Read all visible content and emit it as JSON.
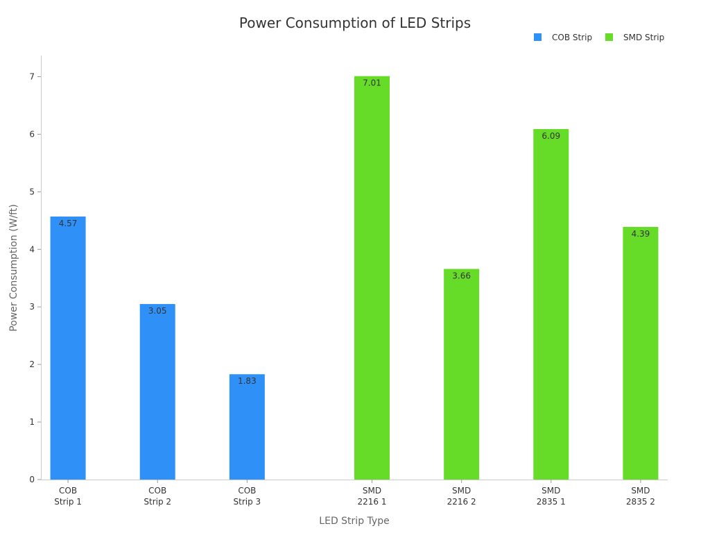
{
  "chart_data": {
    "type": "bar",
    "title": "Power Consumption of LED Strips",
    "xlabel": "LED Strip Type",
    "ylabel": "Power Consumption (W/ft)",
    "ylim": [
      0,
      7.35
    ],
    "yticks": [
      0,
      1,
      2,
      3,
      4,
      5,
      6,
      7
    ],
    "categories": [
      [
        "COB",
        "Strip 1"
      ],
      [
        "COB",
        "Strip 2"
      ],
      [
        "COB",
        "Strip 3"
      ],
      [
        "SMD",
        "2216 1"
      ],
      [
        "SMD",
        "2216 2"
      ],
      [
        "SMD",
        "2835 1"
      ],
      [
        "SMD",
        "2835 2"
      ]
    ],
    "series": [
      {
        "name": "COB Strip",
        "color": "#2f91f7",
        "values": [
          4.57,
          3.05,
          1.83,
          null,
          null,
          null,
          null
        ]
      },
      {
        "name": "SMD Strip",
        "color": "#66dc29",
        "values": [
          null,
          null,
          null,
          7.01,
          3.66,
          6.09,
          4.39
        ]
      }
    ],
    "data_labels": [
      "4.57",
      "3.05",
      "1.83",
      "7.01",
      "3.66",
      "6.09",
      "4.39"
    ],
    "legend_position": "top-right",
    "grid": false
  }
}
